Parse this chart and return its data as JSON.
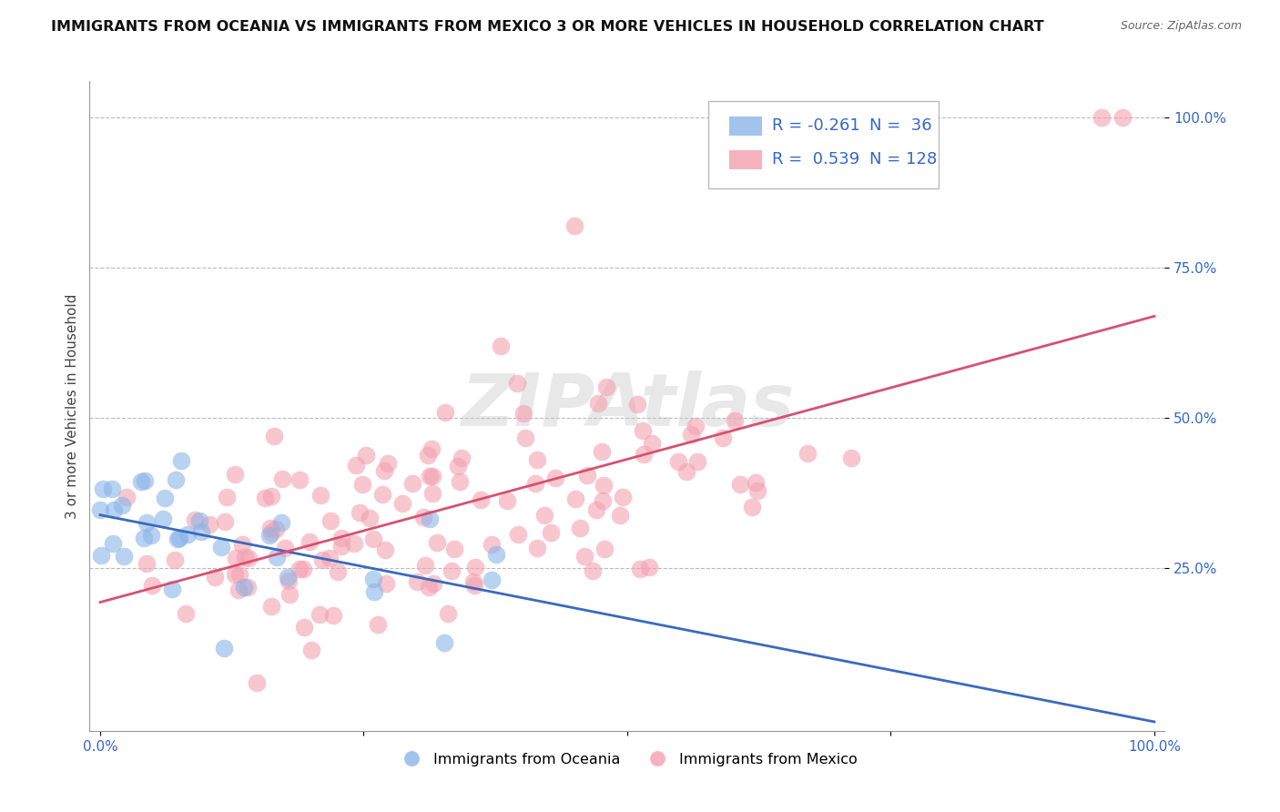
{
  "title": "IMMIGRANTS FROM OCEANIA VS IMMIGRANTS FROM MEXICO 3 OR MORE VEHICLES IN HOUSEHOLD CORRELATION CHART",
  "source": "Source: ZipAtlas.com",
  "ylabel": "3 or more Vehicles in Household",
  "xlim": [
    0.0,
    1.0
  ],
  "ylim": [
    0.0,
    1.05
  ],
  "x_ticks": [
    0.0,
    0.25,
    0.5,
    0.75,
    1.0
  ],
  "x_tick_labels": [
    "0.0%",
    "",
    "",
    "",
    "100.0%"
  ],
  "y_ticks": [
    0.25,
    0.5,
    0.75,
    1.0
  ],
  "y_tick_labels": [
    "25.0%",
    "50.0%",
    "75.0%",
    "100.0%"
  ],
  "oceania_color": "#8ab4e8",
  "mexico_color": "#f4a0b0",
  "oceania_line_color": "#3a6abf",
  "mexico_line_color": "#d95070",
  "oceania_R": -0.261,
  "oceania_N": 36,
  "mexico_R": 0.539,
  "mexico_N": 128,
  "watermark": "ZIPAtlas",
  "background_color": "#ffffff",
  "grid_color": "#bbbbbb",
  "legend_text_color": "#3366cc",
  "title_fontsize": 11.5,
  "source_fontsize": 9,
  "axis_label_fontsize": 11,
  "tick_fontsize": 11,
  "legend_fontsize": 13,
  "watermark_fontsize": 58,
  "oceania_seed": 12,
  "mexico_seed": 99
}
